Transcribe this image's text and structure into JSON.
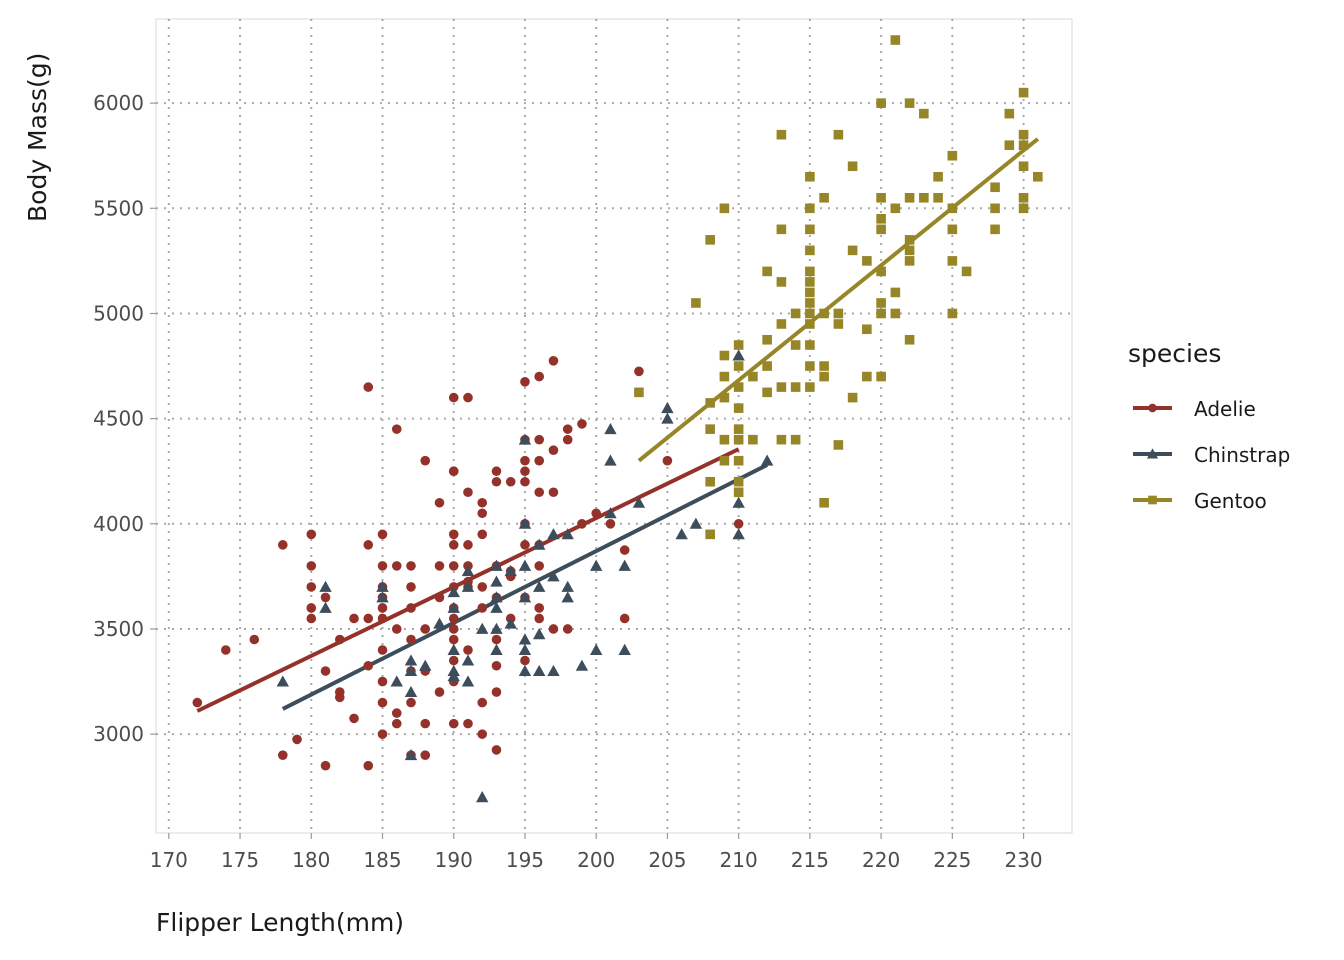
{
  "chart_data": {
    "type": "scatter",
    "title": "",
    "xlabel": "Flipper Length(mm)",
    "ylabel": "Body Mass(g)",
    "xlim": [
      169.1,
      233.4
    ],
    "ylim": [
      2530,
      6400
    ],
    "x_ticks": [
      170,
      175,
      180,
      185,
      190,
      195,
      200,
      205,
      210,
      215,
      220,
      225,
      230
    ],
    "y_ticks": [
      3000,
      3500,
      4000,
      4500,
      5000,
      5500,
      6000
    ],
    "grid": true,
    "legend": {
      "title": "species",
      "position": "right"
    },
    "series": [
      {
        "name": "Adelie",
        "color": "#94312b",
        "marker": "circle",
        "fit": {
          "x": [
            172,
            210
          ],
          "y": [
            3110,
            4355
          ]
        },
        "points": [
          [
            172,
            3150
          ],
          [
            174,
            3400
          ],
          [
            176,
            3450
          ],
          [
            178,
            3900
          ],
          [
            178,
            2900
          ],
          [
            179,
            2975
          ],
          [
            180,
            3950
          ],
          [
            180,
            3800
          ],
          [
            180,
            3700
          ],
          [
            180,
            3600
          ],
          [
            180,
            3550
          ],
          [
            181,
            3650
          ],
          [
            181,
            3300
          ],
          [
            181,
            2850
          ],
          [
            182,
            3450
          ],
          [
            182,
            3200
          ],
          [
            182,
            3175
          ],
          [
            183,
            3550
          ],
          [
            183,
            3075
          ],
          [
            184,
            4650
          ],
          [
            184,
            3900
          ],
          [
            184,
            3550
          ],
          [
            184,
            3325
          ],
          [
            184,
            2850
          ],
          [
            185,
            3950
          ],
          [
            185,
            3800
          ],
          [
            185,
            3700
          ],
          [
            185,
            3650
          ],
          [
            185,
            3600
          ],
          [
            185,
            3550
          ],
          [
            185,
            3400
          ],
          [
            185,
            3250
          ],
          [
            185,
            3150
          ],
          [
            185,
            3000
          ],
          [
            186,
            4450
          ],
          [
            186,
            3800
          ],
          [
            186,
            3500
          ],
          [
            186,
            3100
          ],
          [
            186,
            3050
          ],
          [
            187,
            3800
          ],
          [
            187,
            3700
          ],
          [
            187,
            3600
          ],
          [
            187,
            3450
          ],
          [
            187,
            3300
          ],
          [
            187,
            3150
          ],
          [
            187,
            2900
          ],
          [
            188,
            4300
          ],
          [
            188,
            3500
          ],
          [
            188,
            3300
          ],
          [
            188,
            3050
          ],
          [
            188,
            2900
          ],
          [
            189,
            4100
          ],
          [
            189,
            3800
          ],
          [
            189,
            3650
          ],
          [
            189,
            3200
          ],
          [
            190,
            4600
          ],
          [
            190,
            4250
          ],
          [
            190,
            4250
          ],
          [
            190,
            3950
          ],
          [
            190,
            3900
          ],
          [
            190,
            3800
          ],
          [
            190,
            3700
          ],
          [
            190,
            3600
          ],
          [
            190,
            3550
          ],
          [
            190,
            3500
          ],
          [
            190,
            3450
          ],
          [
            190,
            3350
          ],
          [
            190,
            3250
          ],
          [
            190,
            3050
          ],
          [
            191,
            4600
          ],
          [
            191,
            4150
          ],
          [
            191,
            3900
          ],
          [
            191,
            3800
          ],
          [
            191,
            3725
          ],
          [
            191,
            3700
          ],
          [
            191,
            3400
          ],
          [
            191,
            3050
          ],
          [
            192,
            4100
          ],
          [
            192,
            4050
          ],
          [
            192,
            3950
          ],
          [
            192,
            3700
          ],
          [
            192,
            3600
          ],
          [
            192,
            3150
          ],
          [
            192,
            3000
          ],
          [
            193,
            4250
          ],
          [
            193,
            4200
          ],
          [
            193,
            3800
          ],
          [
            193,
            3650
          ],
          [
            193,
            3450
          ],
          [
            193,
            3325
          ],
          [
            193,
            3200
          ],
          [
            193,
            2925
          ],
          [
            194,
            4200
          ],
          [
            194,
            3775
          ],
          [
            194,
            3750
          ],
          [
            194,
            3550
          ],
          [
            195,
            4675
          ],
          [
            195,
            4400
          ],
          [
            195,
            4300
          ],
          [
            195,
            4250
          ],
          [
            195,
            4200
          ],
          [
            195,
            4000
          ],
          [
            195,
            3900
          ],
          [
            195,
            3650
          ],
          [
            195,
            3350
          ],
          [
            196,
            4700
          ],
          [
            196,
            4400
          ],
          [
            196,
            4300
          ],
          [
            196,
            4150
          ],
          [
            196,
            3900
          ],
          [
            196,
            3800
          ],
          [
            196,
            3600
          ],
          [
            196,
            3550
          ],
          [
            197,
            4775
          ],
          [
            197,
            4350
          ],
          [
            197,
            4150
          ],
          [
            197,
            3500
          ],
          [
            198,
            4450
          ],
          [
            198,
            4400
          ],
          [
            198,
            3500
          ],
          [
            199,
            4475
          ],
          [
            199,
            4000
          ],
          [
            200,
            4050
          ],
          [
            201,
            4000
          ],
          [
            202,
            3875
          ],
          [
            202,
            3550
          ],
          [
            203,
            4725
          ],
          [
            205,
            4300
          ],
          [
            210,
            4000
          ]
        ]
      },
      {
        "name": "Chinstrap",
        "color": "#3d4d5b",
        "marker": "triangle",
        "fit": {
          "x": [
            178,
            212
          ],
          "y": [
            3120,
            4280
          ]
        },
        "points": [
          [
            178,
            3250
          ],
          [
            181,
            3700
          ],
          [
            181,
            3600
          ],
          [
            185,
            3700
          ],
          [
            185,
            3650
          ],
          [
            186,
            3250
          ],
          [
            187,
            3350
          ],
          [
            187,
            3300
          ],
          [
            187,
            3200
          ],
          [
            187,
            2900
          ],
          [
            188,
            3325
          ],
          [
            189,
            3525
          ],
          [
            190,
            3675
          ],
          [
            190,
            3600
          ],
          [
            190,
            3400
          ],
          [
            190,
            3300
          ],
          [
            190,
            3275
          ],
          [
            191,
            3775
          ],
          [
            191,
            3700
          ],
          [
            191,
            3350
          ],
          [
            191,
            3250
          ],
          [
            192,
            3500
          ],
          [
            192,
            2700
          ],
          [
            193,
            3800
          ],
          [
            193,
            3725
          ],
          [
            193,
            3650
          ],
          [
            193,
            3600
          ],
          [
            193,
            3500
          ],
          [
            193,
            3400
          ],
          [
            194,
            3775
          ],
          [
            194,
            3525
          ],
          [
            195,
            4400
          ],
          [
            195,
            4000
          ],
          [
            195,
            3800
          ],
          [
            195,
            3650
          ],
          [
            195,
            3450
          ],
          [
            195,
            3400
          ],
          [
            195,
            3300
          ],
          [
            196,
            3900
          ],
          [
            196,
            3700
          ],
          [
            196,
            3475
          ],
          [
            196,
            3300
          ],
          [
            197,
            3950
          ],
          [
            197,
            3750
          ],
          [
            197,
            3300
          ],
          [
            198,
            3950
          ],
          [
            198,
            3700
          ],
          [
            198,
            3650
          ],
          [
            199,
            3325
          ],
          [
            200,
            3800
          ],
          [
            200,
            3400
          ],
          [
            201,
            4450
          ],
          [
            201,
            4300
          ],
          [
            201,
            4050
          ],
          [
            202,
            3800
          ],
          [
            202,
            3400
          ],
          [
            203,
            4100
          ],
          [
            205,
            4550
          ],
          [
            205,
            4500
          ],
          [
            206,
            3950
          ],
          [
            207,
            4000
          ],
          [
            210,
            4800
          ],
          [
            210,
            4100
          ],
          [
            210,
            3950
          ],
          [
            212,
            4300
          ]
        ]
      },
      {
        "name": "Gentoo",
        "color": "#978628",
        "marker": "square",
        "fit": {
          "x": [
            203,
            231
          ],
          "y": [
            4300,
            5830
          ]
        },
        "points": [
          [
            203,
            4625
          ],
          [
            207,
            5050
          ],
          [
            208,
            5350
          ],
          [
            208,
            4575
          ],
          [
            208,
            4450
          ],
          [
            208,
            4200
          ],
          [
            208,
            3950
          ],
          [
            209,
            5500
          ],
          [
            209,
            4800
          ],
          [
            209,
            4700
          ],
          [
            209,
            4600
          ],
          [
            209,
            4400
          ],
          [
            209,
            4300
          ],
          [
            210,
            4850
          ],
          [
            210,
            4750
          ],
          [
            210,
            4650
          ],
          [
            210,
            4550
          ],
          [
            210,
            4450
          ],
          [
            210,
            4400
          ],
          [
            210,
            4300
          ],
          [
            210,
            4200
          ],
          [
            210,
            4150
          ],
          [
            211,
            4700
          ],
          [
            211,
            4400
          ],
          [
            212,
            5200
          ],
          [
            212,
            4875
          ],
          [
            212,
            4750
          ],
          [
            212,
            4625
          ],
          [
            213,
            5850
          ],
          [
            213,
            5400
          ],
          [
            213,
            5150
          ],
          [
            213,
            4950
          ],
          [
            213,
            4650
          ],
          [
            213,
            4400
          ],
          [
            214,
            5000
          ],
          [
            214,
            4850
          ],
          [
            214,
            4650
          ],
          [
            214,
            4400
          ],
          [
            215,
            5650
          ],
          [
            215,
            5500
          ],
          [
            215,
            5400
          ],
          [
            215,
            5300
          ],
          [
            215,
            5200
          ],
          [
            215,
            5150
          ],
          [
            215,
            5100
          ],
          [
            215,
            5050
          ],
          [
            215,
            5000
          ],
          [
            215,
            4950
          ],
          [
            215,
            4850
          ],
          [
            215,
            4750
          ],
          [
            215,
            4650
          ],
          [
            216,
            5550
          ],
          [
            216,
            5000
          ],
          [
            216,
            4750
          ],
          [
            216,
            4700
          ],
          [
            216,
            4100
          ],
          [
            217,
            5850
          ],
          [
            217,
            5000
          ],
          [
            217,
            4950
          ],
          [
            217,
            4375
          ],
          [
            218,
            5700
          ],
          [
            218,
            5300
          ],
          [
            218,
            4600
          ],
          [
            219,
            5250
          ],
          [
            219,
            4925
          ],
          [
            219,
            4700
          ],
          [
            220,
            6000
          ],
          [
            220,
            5550
          ],
          [
            220,
            5450
          ],
          [
            220,
            5400
          ],
          [
            220,
            5200
          ],
          [
            220,
            5050
          ],
          [
            220,
            5000
          ],
          [
            220,
            4700
          ],
          [
            221,
            6300
          ],
          [
            221,
            5500
          ],
          [
            221,
            5100
          ],
          [
            221,
            5000
          ],
          [
            222,
            6000
          ],
          [
            222,
            5550
          ],
          [
            222,
            5350
          ],
          [
            222,
            5300
          ],
          [
            222,
            5250
          ],
          [
            222,
            4875
          ],
          [
            223,
            5950
          ],
          [
            223,
            5550
          ],
          [
            224,
            5650
          ],
          [
            224,
            5550
          ],
          [
            225,
            5750
          ],
          [
            225,
            5500
          ],
          [
            225,
            5400
          ],
          [
            225,
            5250
          ],
          [
            225,
            5000
          ],
          [
            226,
            5200
          ],
          [
            228,
            5600
          ],
          [
            228,
            5500
          ],
          [
            228,
            5400
          ],
          [
            229,
            5950
          ],
          [
            229,
            5800
          ],
          [
            230,
            6050
          ],
          [
            230,
            5850
          ],
          [
            230,
            5800
          ],
          [
            230,
            5700
          ],
          [
            230,
            5550
          ],
          [
            230,
            5500
          ],
          [
            231,
            5650
          ]
        ]
      }
    ]
  }
}
